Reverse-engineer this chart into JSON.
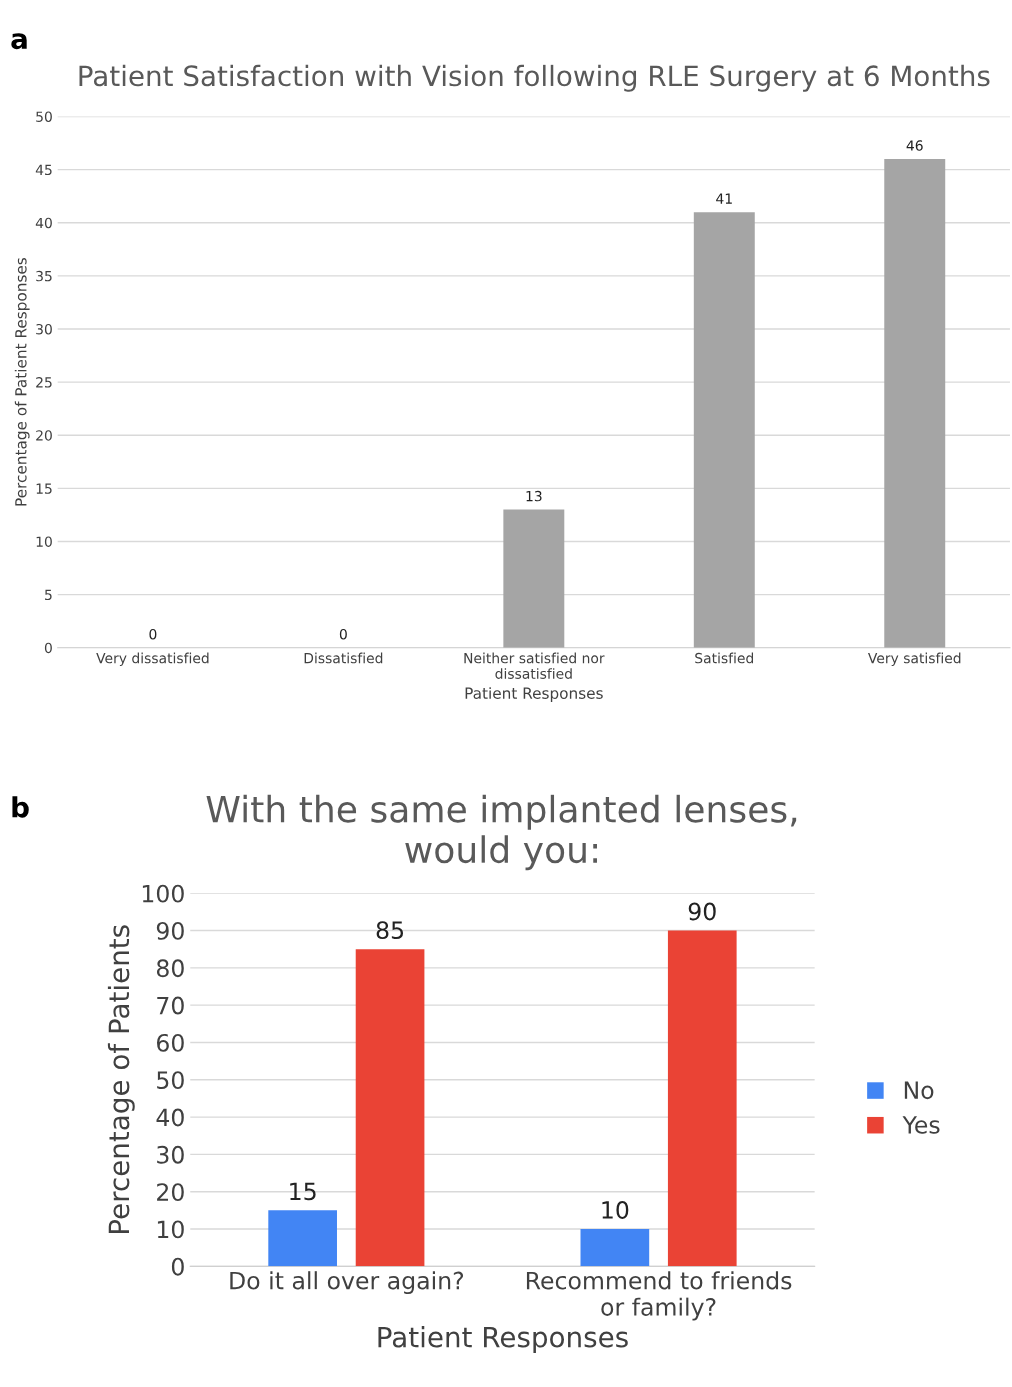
{
  "chart_data": [
    {
      "type": "bar",
      "title": "Patient Satisfaction with Vision following RLE Surgery at 6 Months",
      "xlabel": "Patient Responses",
      "ylabel": "Percentage of Patient Responses",
      "categories": [
        "Very dissatisfied",
        "Dissatisfied",
        "Neither satisfied nor\ndissatisfied",
        "Satisfied",
        "Very satisfied"
      ],
      "series": [
        {
          "color": "#a5a5a5",
          "values": [
            0,
            0,
            13,
            41,
            46
          ]
        }
      ],
      "ylim": [
        0,
        50
      ],
      "yticks": [
        0,
        5,
        10,
        15,
        20,
        25,
        30,
        35,
        40,
        45,
        50
      ],
      "grid": "y",
      "data_labels": true,
      "legend": false,
      "annotations": [
        "a"
      ]
    },
    {
      "type": "bar",
      "title": "With the same implanted lenses,\nwould you:",
      "xlabel": "Patient Responses",
      "ylabel": "Percentage of Patients",
      "categories": [
        "Do it all over again?",
        "Recommend to friends\nor family?"
      ],
      "series": [
        {
          "name": "No",
          "color": "#4285f4",
          "values": [
            15,
            10
          ]
        },
        {
          "name": "Yes",
          "color": "#ea4335",
          "values": [
            85,
            90
          ]
        }
      ],
      "ylim": [
        0,
        100
      ],
      "yticks": [
        0,
        10,
        20,
        30,
        40,
        50,
        60,
        70,
        80,
        90,
        100
      ],
      "grid": "y",
      "data_labels": true,
      "legend": "right",
      "annotations": [
        "b"
      ]
    }
  ]
}
